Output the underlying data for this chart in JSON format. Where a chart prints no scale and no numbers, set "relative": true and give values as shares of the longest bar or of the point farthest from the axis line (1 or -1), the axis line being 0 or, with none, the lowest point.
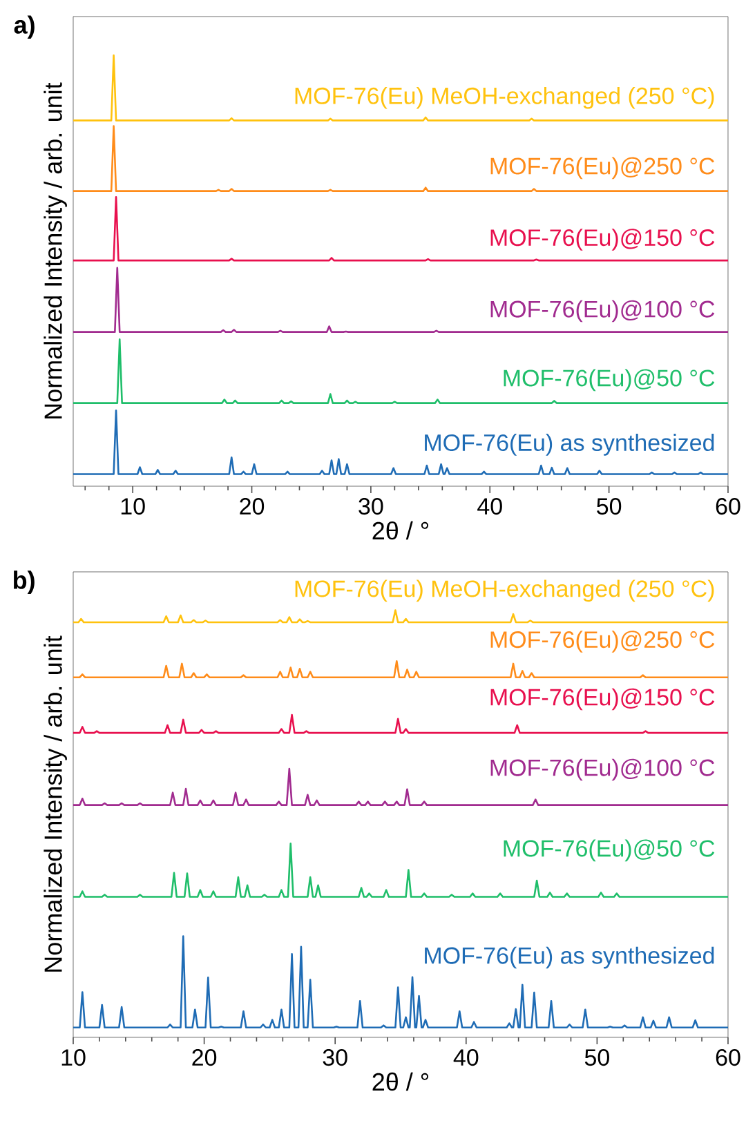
{
  "chart_data": [
    {
      "type": "line",
      "relative": true,
      "xlabel": "2θ / °",
      "ylabel": "Normalized Intensity / arb. unit",
      "annotations": [
        "a)"
      ],
      "xlim": [
        5,
        60
      ],
      "xticks": [
        {
          "value": 6,
          "label": null
        },
        {
          "value": 8,
          "label": null
        },
        10,
        {
          "value": 12,
          "label": null
        },
        {
          "value": 14,
          "label": null
        },
        {
          "value": 16,
          "label": null
        },
        {
          "value": 18,
          "label": null
        },
        20,
        {
          "value": 22,
          "label": null
        },
        {
          "value": 24,
          "label": null
        },
        {
          "value": 26,
          "label": null
        },
        {
          "value": 28,
          "label": null
        },
        30,
        {
          "value": 32,
          "label": null
        },
        {
          "value": 34,
          "label": null
        },
        {
          "value": 36,
          "label": null
        },
        {
          "value": 38,
          "label": null
        },
        40,
        {
          "value": 42,
          "label": null
        },
        {
          "value": 44,
          "label": null
        },
        {
          "value": 46,
          "label": null
        },
        {
          "value": 48,
          "label": null
        },
        50,
        {
          "value": 52,
          "label": null
        },
        {
          "value": 54,
          "label": null
        },
        {
          "value": 56,
          "label": null
        },
        {
          "value": 58,
          "label": null
        },
        60
      ],
      "series": [
        {
          "name": "MOF-76(Eu) as synthesized",
          "color": "#1f6cb5",
          "x": [
            5,
            8.4,
            8.6,
            8.8,
            10.4,
            10.6,
            10.8,
            11.9,
            12.1,
            12.3,
            13.4,
            13.6,
            13.8,
            18.1,
            18.3,
            18.5,
            19.1,
            19.3,
            19.5,
            20.0,
            20.2,
            20.4,
            22.8,
            23.0,
            23.2,
            25.7,
            25.9,
            26.1,
            26.5,
            26.7,
            26.9,
            27.1,
            27.3,
            27.5,
            27.8,
            28.0,
            28.2,
            31.7,
            31.9,
            32.1,
            34.5,
            34.7,
            34.9,
            35.7,
            35.9,
            36.1,
            36.2,
            36.4,
            36.6,
            39.3,
            39.5,
            39.7,
            44.1,
            44.3,
            44.5,
            45.0,
            45.2,
            45.4,
            46.3,
            46.5,
            46.7,
            49.0,
            49.2,
            49.4,
            53.4,
            53.6,
            53.8,
            55.3,
            55.5,
            55.7,
            57.5,
            57.7,
            57.9,
            60
          ],
          "values": [
            0.028,
            0.028,
            0.176,
            0.028,
            0.028,
            0.044,
            0.028,
            0.028,
            0.038,
            0.028,
            0.028,
            0.036,
            0.028,
            0.028,
            0.067,
            0.028,
            0.028,
            0.034,
            0.028,
            0.028,
            0.051,
            0.028,
            0.028,
            0.034,
            0.028,
            0.028,
            0.036,
            0.028,
            0.028,
            0.06,
            0.028,
            0.028,
            0.063,
            0.028,
            0.028,
            0.051,
            0.028,
            0.028,
            0.042,
            0.028,
            0.028,
            0.048,
            0.028,
            0.028,
            0.051,
            0.028,
            0.028,
            0.042,
            0.028,
            0.028,
            0.034,
            0.028,
            0.028,
            0.048,
            0.028,
            0.028,
            0.043,
            0.028,
            0.028,
            0.042,
            0.028,
            0.028,
            0.036,
            0.028,
            0.028,
            0.032,
            0.028,
            0.028,
            0.032,
            0.028,
            0.028,
            0.032,
            0.028,
            0.028
          ]
        },
        {
          "name": "MOF-76(Eu)@50 °C",
          "color": "#1fbe6a",
          "x": [
            5,
            8.7,
            8.9,
            9.1,
            17.5,
            17.7,
            17.9,
            18.4,
            18.6,
            18.8,
            22.3,
            22.5,
            22.7,
            23.1,
            23.3,
            23.5,
            26.4,
            26.6,
            26.8,
            27.8,
            28.0,
            28.2,
            28.5,
            28.7,
            28.9,
            31.8,
            32.0,
            32.2,
            35.4,
            35.6,
            35.8,
            45.2,
            45.4,
            45.6,
            60
          ],
          "values": [
            0.193,
            0.193,
            0.341,
            0.193,
            0.193,
            0.201,
            0.193,
            0.193,
            0.199,
            0.193,
            0.193,
            0.199,
            0.193,
            0.193,
            0.197,
            0.193,
            0.193,
            0.214,
            0.193,
            0.193,
            0.199,
            0.193,
            0.193,
            0.196,
            0.193,
            0.193,
            0.196,
            0.193,
            0.193,
            0.201,
            0.193,
            0.193,
            0.198,
            0.193,
            0.193
          ]
        },
        {
          "name": "MOF-76(Eu)@100 °C",
          "color": "#a12b8f",
          "x": [
            5,
            8.5,
            8.7,
            8.9,
            17.4,
            17.6,
            17.8,
            18.3,
            18.5,
            18.7,
            22.2,
            22.4,
            22.6,
            26.3,
            26.5,
            26.7,
            27.7,
            27.9,
            28.1,
            35.3,
            35.5,
            35.7,
            60
          ],
          "values": [
            0.358,
            0.358,
            0.507,
            0.358,
            0.358,
            0.362,
            0.358,
            0.358,
            0.363,
            0.358,
            0.358,
            0.361,
            0.358,
            0.358,
            0.371,
            0.358,
            0.358,
            0.359,
            0.358,
            0.358,
            0.361,
            0.358,
            0.358
          ]
        },
        {
          "name": "MOF-76(Eu)@150 °C",
          "color": "#e8104e",
          "x": [
            5,
            8.4,
            8.6,
            8.8,
            18.1,
            18.3,
            18.5,
            26.5,
            26.7,
            26.9,
            34.6,
            34.8,
            35.0,
            43.7,
            43.9,
            44.1,
            60
          ],
          "values": [
            0.524,
            0.524,
            0.671,
            0.524,
            0.524,
            0.528,
            0.524,
            0.524,
            0.53,
            0.524,
            0.524,
            0.527,
            0.524,
            0.524,
            0.526,
            0.524,
            0.524
          ]
        },
        {
          "name": "MOF-76(Eu)@250 °C",
          "color": "#ff8c1a",
          "x": [
            5,
            8.2,
            8.4,
            8.6,
            17.0,
            17.2,
            17.4,
            18.1,
            18.3,
            18.5,
            26.4,
            26.6,
            26.8,
            34.4,
            34.6,
            34.8,
            43.5,
            43.7,
            43.9,
            60
          ],
          "values": [
            0.685,
            0.685,
            0.836,
            0.685,
            0.685,
            0.688,
            0.685,
            0.685,
            0.69,
            0.685,
            0.685,
            0.688,
            0.685,
            0.685,
            0.693,
            0.685,
            0.685,
            0.69,
            0.685,
            0.685
          ]
        },
        {
          "name": "MOF-76(Eu) MeOH-exchanged (250 °C)",
          "color": "#ffc20e",
          "x": [
            5,
            8.2,
            8.4,
            8.6,
            18.1,
            18.3,
            18.5,
            26.4,
            26.6,
            26.8,
            34.4,
            34.6,
            34.8,
            43.3,
            43.5,
            43.7,
            60
          ],
          "values": [
            0.849,
            0.849,
            1.0,
            0.849,
            0.849,
            0.854,
            0.849,
            0.849,
            0.853,
            0.849,
            0.849,
            0.856,
            0.849,
            0.849,
            0.853,
            0.849,
            0.849
          ]
        }
      ]
    },
    {
      "type": "line",
      "relative": true,
      "xlabel": "2θ / °",
      "ylabel": "Normalized Intensity / arb. unit",
      "annotations": [
        "b)"
      ],
      "xlim": [
        10,
        60
      ],
      "xticks": [
        10,
        {
          "value": 12,
          "label": null
        },
        {
          "value": 14,
          "label": null
        },
        {
          "value": 16,
          "label": null
        },
        {
          "value": 18,
          "label": null
        },
        20,
        {
          "value": 22,
          "label": null
        },
        {
          "value": 24,
          "label": null
        },
        {
          "value": 26,
          "label": null
        },
        {
          "value": 28,
          "label": null
        },
        30,
        {
          "value": 32,
          "label": null
        },
        {
          "value": 34,
          "label": null
        },
        {
          "value": 36,
          "label": null
        },
        {
          "value": 38,
          "label": null
        },
        40,
        {
          "value": 42,
          "label": null
        },
        {
          "value": 44,
          "label": null
        },
        {
          "value": 46,
          "label": null
        },
        {
          "value": 48,
          "label": null
        },
        50,
        {
          "value": 52,
          "label": null
        },
        {
          "value": 54,
          "label": null
        },
        {
          "value": 56,
          "label": null
        },
        {
          "value": 58,
          "label": null
        },
        60
      ],
      "series": [
        {
          "name": "MOF-76(Eu) as synthesized",
          "color": "#1f6cb5",
          "x": [
            10,
            10.5,
            10.7,
            10.9,
            12.0,
            12.2,
            12.4,
            13.5,
            13.7,
            13.9,
            17.2,
            17.4,
            17.6,
            18.2,
            18.4,
            18.6,
            19.1,
            19.3,
            19.5,
            20.1,
            20.3,
            20.5,
            21.1,
            21.3,
            21.5,
            22.8,
            23.0,
            23.2,
            24.3,
            24.5,
            24.7,
            25.0,
            25.2,
            25.4,
            25.7,
            25.9,
            26.1,
            26.5,
            26.7,
            26.9,
            27.2,
            27.4,
            27.6,
            27.9,
            28.1,
            28.3,
            29.9,
            30.1,
            30.3,
            31.7,
            31.9,
            32.1,
            33.5,
            33.7,
            33.9,
            34.6,
            34.8,
            35.0,
            35.2,
            35.4,
            35.6,
            35.7,
            35.9,
            36.1,
            36.2,
            36.4,
            36.6,
            36.7,
            36.9,
            37.1,
            39.3,
            39.5,
            39.7,
            40.4,
            40.6,
            40.8,
            43.1,
            43.3,
            43.5,
            43.6,
            43.8,
            44.0,
            44.1,
            44.3,
            44.5,
            45.0,
            45.2,
            45.4,
            46.3,
            46.5,
            46.7,
            47.7,
            47.9,
            48.1,
            48.9,
            49.1,
            49.3,
            50.8,
            51.0,
            51.2,
            51.9,
            52.1,
            52.3,
            53.3,
            53.5,
            53.7,
            54.1,
            54.3,
            54.5,
            55.3,
            55.5,
            55.7,
            57.3,
            57.5,
            57.7,
            60
          ],
          "values": [
            0.023,
            0.023,
            0.106,
            0.023,
            0.023,
            0.076,
            0.023,
            0.023,
            0.071,
            0.023,
            0.023,
            0.03,
            0.023,
            0.023,
            0.237,
            0.023,
            0.023,
            0.065,
            0.023,
            0.023,
            0.14,
            0.023,
            0.023,
            0.025,
            0.023,
            0.023,
            0.061,
            0.023,
            0.023,
            0.03,
            0.023,
            0.023,
            0.041,
            0.023,
            0.023,
            0.065,
            0.023,
            0.023,
            0.195,
            0.023,
            0.023,
            0.212,
            0.023,
            0.023,
            0.135,
            0.023,
            0.023,
            0.025,
            0.023,
            0.023,
            0.085,
            0.023,
            0.023,
            0.028,
            0.023,
            0.023,
            0.117,
            0.023,
            0.023,
            0.047,
            0.023,
            0.023,
            0.141,
            0.023,
            0.023,
            0.097,
            0.023,
            0.023,
            0.041,
            0.023,
            0.023,
            0.061,
            0.023,
            0.023,
            0.036,
            0.023,
            0.023,
            0.033,
            0.023,
            0.023,
            0.066,
            0.023,
            0.023,
            0.123,
            0.023,
            0.023,
            0.105,
            0.023,
            0.023,
            0.085,
            0.023,
            0.023,
            0.03,
            0.023,
            0.023,
            0.065,
            0.023,
            0.023,
            0.025,
            0.023,
            0.023,
            0.028,
            0.023,
            0.023,
            0.047,
            0.023,
            0.023,
            0.039,
            0.023,
            0.023,
            0.047,
            0.023,
            0.023,
            0.04,
            0.023,
            0.023
          ]
        },
        {
          "name": "MOF-76(Eu)@50 °C",
          "color": "#1fbe6a",
          "x": [
            10,
            10.5,
            10.7,
            10.9,
            12.2,
            12.4,
            12.6,
            14.9,
            15.1,
            15.3,
            17.5,
            17.7,
            17.9,
            18.5,
            18.7,
            18.9,
            19.5,
            19.7,
            19.9,
            20.5,
            20.7,
            20.9,
            22.4,
            22.6,
            22.8,
            23.1,
            23.3,
            23.5,
            24.4,
            24.6,
            24.8,
            25.7,
            25.9,
            26.1,
            26.4,
            26.6,
            26.8,
            27.9,
            28.1,
            28.3,
            28.5,
            28.7,
            28.9,
            31.8,
            32.0,
            32.2,
            32.4,
            32.6,
            32.8,
            33.7,
            33.9,
            34.1,
            35.4,
            35.6,
            35.8,
            36.6,
            36.8,
            37.0,
            38.7,
            38.9,
            39.1,
            40.3,
            40.5,
            40.7,
            42.4,
            42.6,
            42.8,
            45.2,
            45.4,
            45.6,
            46.2,
            46.4,
            46.6,
            47.5,
            47.7,
            47.9,
            50.1,
            50.3,
            50.5,
            51.3,
            51.5,
            51.7,
            60
          ],
          "values": [
            0.329,
            0.329,
            0.342,
            0.329,
            0.329,
            0.334,
            0.329,
            0.329,
            0.334,
            0.329,
            0.329,
            0.385,
            0.329,
            0.329,
            0.384,
            0.329,
            0.329,
            0.345,
            0.329,
            0.329,
            0.342,
            0.329,
            0.329,
            0.375,
            0.329,
            0.329,
            0.356,
            0.329,
            0.329,
            0.334,
            0.329,
            0.329,
            0.345,
            0.329,
            0.329,
            0.454,
            0.329,
            0.329,
            0.375,
            0.329,
            0.329,
            0.356,
            0.329,
            0.329,
            0.35,
            0.329,
            0.329,
            0.337,
            0.329,
            0.329,
            0.345,
            0.329,
            0.329,
            0.392,
            0.329,
            0.329,
            0.337,
            0.329,
            0.329,
            0.334,
            0.329,
            0.329,
            0.337,
            0.329,
            0.329,
            0.337,
            0.329,
            0.329,
            0.367,
            0.329,
            0.329,
            0.339,
            0.329,
            0.329,
            0.337,
            0.329,
            0.329,
            0.339,
            0.329,
            0.329,
            0.337,
            0.329,
            0.329
          ]
        },
        {
          "name": "MOF-76(Eu)@100 °C",
          "color": "#a12b8f",
          "x": [
            10,
            10.5,
            10.7,
            10.9,
            12.2,
            12.4,
            12.6,
            13.5,
            13.7,
            13.9,
            14.9,
            15.1,
            15.3,
            17.4,
            17.6,
            17.8,
            18.4,
            18.6,
            18.8,
            19.5,
            19.7,
            19.9,
            20.5,
            20.7,
            20.9,
            22.2,
            22.4,
            22.6,
            23.0,
            23.2,
            23.4,
            25.5,
            25.7,
            25.9,
            26.3,
            26.5,
            26.7,
            27.7,
            27.9,
            28.1,
            28.4,
            28.6,
            28.8,
            31.6,
            31.8,
            32.0,
            32.3,
            32.5,
            32.7,
            33.6,
            33.8,
            34.0,
            34.5,
            34.7,
            34.9,
            35.3,
            35.5,
            35.7,
            36.6,
            36.8,
            37.0,
            45.1,
            45.3,
            45.5,
            60
          ],
          "values": [
            0.544,
            0.544,
            0.559,
            0.544,
            0.544,
            0.548,
            0.544,
            0.544,
            0.548,
            0.544,
            0.544,
            0.548,
            0.544,
            0.544,
            0.573,
            0.544,
            0.544,
            0.582,
            0.544,
            0.544,
            0.555,
            0.544,
            0.544,
            0.555,
            0.544,
            0.544,
            0.573,
            0.544,
            0.544,
            0.557,
            0.544,
            0.544,
            0.552,
            0.544,
            0.544,
            0.629,
            0.544,
            0.544,
            0.568,
            0.544,
            0.544,
            0.555,
            0.544,
            0.544,
            0.552,
            0.544,
            0.544,
            0.552,
            0.544,
            0.544,
            0.552,
            0.544,
            0.544,
            0.552,
            0.544,
            0.544,
            0.581,
            0.544,
            0.544,
            0.552,
            0.544,
            0.544,
            0.557,
            0.544,
            0.544
          ]
        },
        {
          "name": "MOF-76(Eu)@150 °C",
          "color": "#e8104e",
          "x": [
            10,
            10.5,
            10.7,
            10.9,
            11.6,
            11.8,
            12.0,
            17.0,
            17.2,
            17.4,
            18.2,
            18.4,
            18.6,
            19.6,
            19.8,
            20.0,
            20.7,
            20.9,
            21.1,
            25.7,
            25.9,
            26.1,
            26.5,
            26.7,
            26.9,
            27.6,
            27.8,
            28.0,
            34.6,
            34.8,
            35.0,
            35.2,
            35.4,
            35.6,
            43.7,
            43.9,
            44.1,
            53.5,
            53.7,
            53.9,
            60
          ],
          "values": [
            0.713,
            0.713,
            0.727,
            0.713,
            0.713,
            0.717,
            0.713,
            0.713,
            0.731,
            0.713,
            0.713,
            0.744,
            0.713,
            0.713,
            0.72,
            0.713,
            0.713,
            0.717,
            0.713,
            0.713,
            0.722,
            0.713,
            0.713,
            0.755,
            0.713,
            0.713,
            0.717,
            0.713,
            0.713,
            0.746,
            0.713,
            0.713,
            0.722,
            0.713,
            0.713,
            0.731,
            0.713,
            0.713,
            0.717,
            0.713,
            0.713
          ]
        },
        {
          "name": "MOF-76(Eu)@250 °C",
          "color": "#ff8c1a",
          "x": [
            10,
            10.5,
            10.7,
            10.9,
            16.9,
            17.1,
            17.3,
            18.1,
            18.3,
            18.5,
            19.0,
            19.2,
            19.4,
            20.0,
            20.2,
            20.4,
            22.8,
            23.0,
            23.2,
            25.6,
            25.8,
            26.0,
            26.4,
            26.6,
            26.8,
            27.1,
            27.3,
            27.5,
            27.9,
            28.1,
            28.3,
            34.5,
            34.7,
            34.9,
            35.3,
            35.5,
            35.7,
            36.0,
            36.2,
            36.4,
            43.4,
            43.6,
            43.8,
            44.1,
            44.3,
            44.5,
            44.8,
            45.0,
            45.2,
            53.3,
            53.5,
            53.7,
            60
          ],
          "values": [
            0.843,
            0.843,
            0.85,
            0.843,
            0.843,
            0.87,
            0.843,
            0.843,
            0.875,
            0.843,
            0.843,
            0.853,
            0.843,
            0.843,
            0.85,
            0.843,
            0.843,
            0.848,
            0.843,
            0.843,
            0.856,
            0.843,
            0.843,
            0.866,
            0.843,
            0.843,
            0.863,
            0.843,
            0.843,
            0.856,
            0.843,
            0.843,
            0.881,
            0.843,
            0.843,
            0.861,
            0.843,
            0.843,
            0.856,
            0.843,
            0.843,
            0.875,
            0.843,
            0.843,
            0.858,
            0.843,
            0.843,
            0.853,
            0.843,
            0.843,
            0.848,
            0.843,
            0.843
          ]
        },
        {
          "name": "MOF-76(Eu) MeOH-exchanged (250 °C)",
          "color": "#ffc20e",
          "x": [
            10,
            10.4,
            10.6,
            10.8,
            16.9,
            17.1,
            17.3,
            18.0,
            18.2,
            18.4,
            19.0,
            19.2,
            19.4,
            19.9,
            20.1,
            20.3,
            25.6,
            25.8,
            26.0,
            26.3,
            26.5,
            26.7,
            27.1,
            27.3,
            27.5,
            27.7,
            27.9,
            28.1,
            34.4,
            34.6,
            34.8,
            35.2,
            35.4,
            35.6,
            43.4,
            43.6,
            43.8,
            44.7,
            44.9,
            45.1,
            60
          ],
          "values": [
            0.972,
            0.972,
            0.98,
            0.972,
            0.972,
            0.986,
            0.972,
            0.972,
            0.988,
            0.972,
            0.972,
            0.977,
            0.972,
            0.972,
            0.976,
            0.972,
            0.972,
            0.977,
            0.972,
            0.972,
            0.984,
            0.972,
            0.972,
            0.979,
            0.972,
            0.972,
            0.975,
            0.972,
            0.972,
            1.0,
            0.972,
            0.972,
            0.98,
            0.972,
            0.972,
            0.991,
            0.972,
            0.972,
            0.976,
            0.972,
            0.972
          ]
        }
      ]
    }
  ]
}
